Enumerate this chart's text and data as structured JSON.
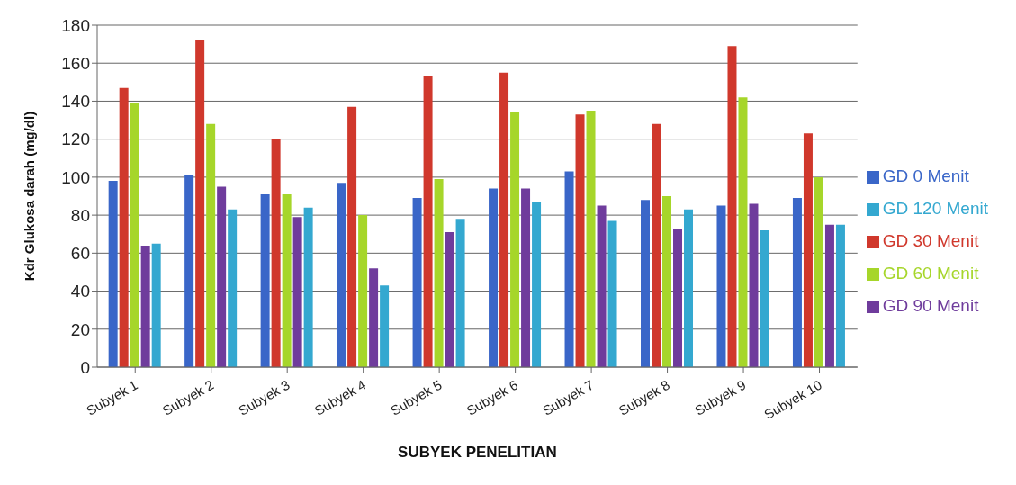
{
  "chart_data": {
    "type": "bar",
    "xlabel": "SUBYEK PENELITIAN",
    "ylabel": "Kdr Glukosa darah (mg/dl)",
    "categories": [
      "Subyek 1",
      "Subyek 2",
      "Subyek 3",
      "Subyek 4",
      "Subyek 5",
      "Subyek 6",
      "Subyek 7",
      "Subyek 8",
      "Subyek 9",
      "Subyek 10"
    ],
    "series": [
      {
        "name": "GD 0 Menit",
        "color": "#3a66c8",
        "values": [
          98,
          101,
          91,
          97,
          89,
          94,
          103,
          88,
          85,
          89
        ]
      },
      {
        "name": "GD 30 Menit",
        "color": "#d0382c",
        "values": [
          147,
          172,
          120,
          137,
          153,
          155,
          133,
          128,
          169,
          123
        ]
      },
      {
        "name": "GD 60 Menit",
        "color": "#a6d62a",
        "values": [
          139,
          128,
          91,
          80,
          99,
          134,
          135,
          90,
          142,
          100
        ]
      },
      {
        "name": "GD 90 Menit",
        "color": "#6f3c9c",
        "values": [
          64,
          95,
          79,
          52,
          71,
          94,
          85,
          73,
          86,
          75
        ]
      },
      {
        "name": "GD 120 Menit",
        "color": "#34a8d0",
        "values": [
          65,
          83,
          84,
          43,
          78,
          87,
          77,
          83,
          72,
          75
        ]
      }
    ],
    "ylim": [
      0,
      180
    ],
    "yticks": [
      0,
      20,
      40,
      60,
      80,
      100,
      120,
      140,
      160,
      180
    ],
    "grid": "y",
    "legend": "right"
  }
}
